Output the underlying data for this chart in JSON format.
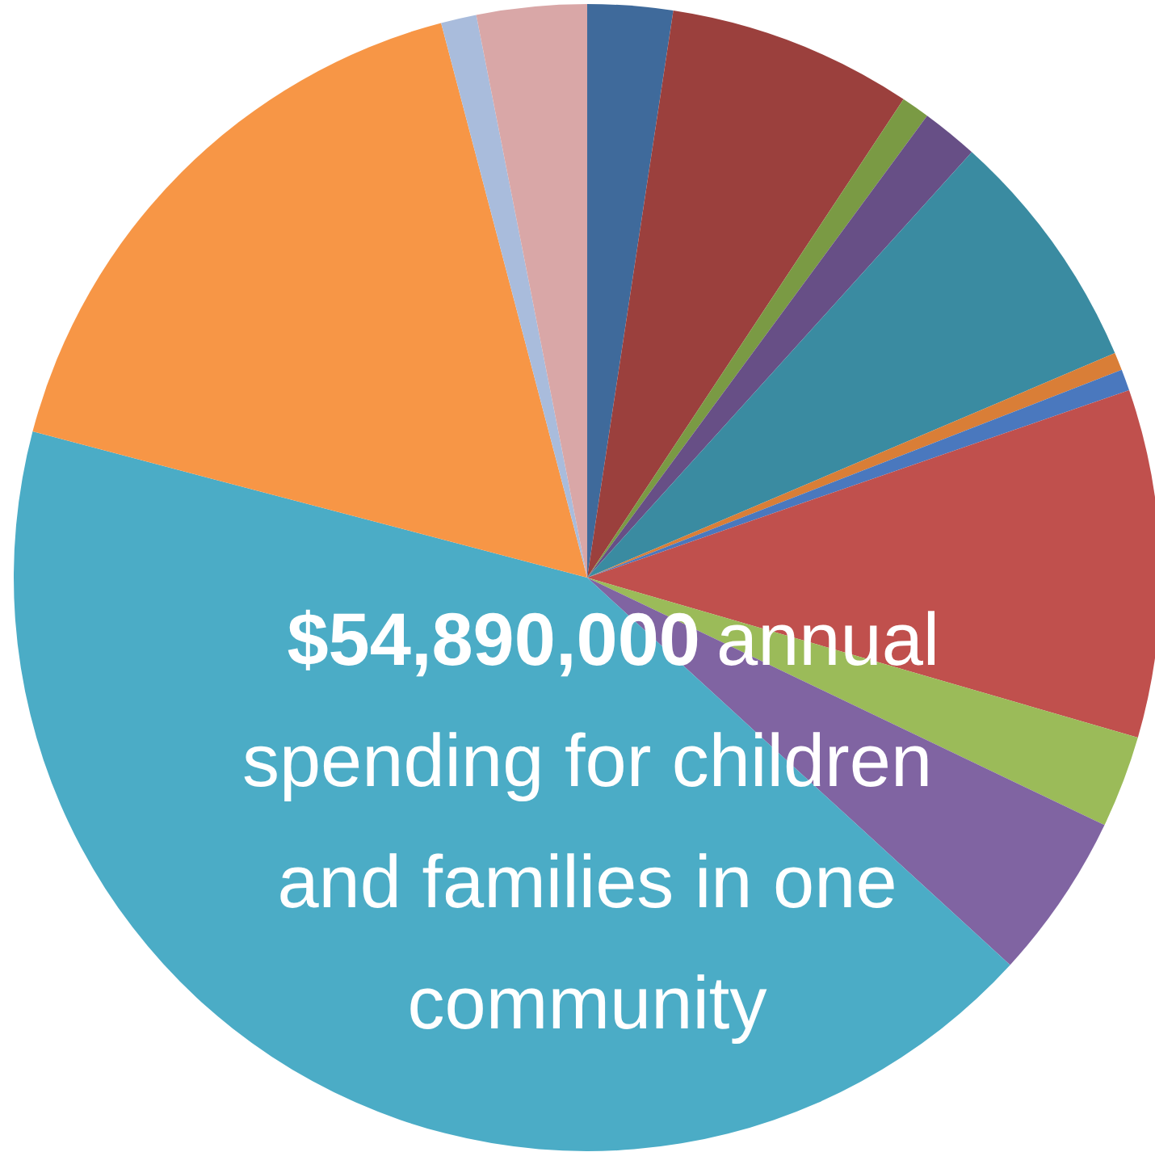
{
  "chart_data": {
    "type": "pie",
    "categories": [
      null,
      null,
      null,
      null,
      null,
      null,
      null,
      null,
      null,
      null,
      null,
      null,
      null,
      null
    ],
    "values": [
      2.4,
      6.9,
      0.8,
      1.6,
      6.9,
      0.5,
      0.6,
      9.8,
      2.6,
      4.7,
      42.3,
      16.8,
      1.0,
      3.1
    ],
    "colors": [
      "#3f6a9b",
      "#9b403d",
      "#7a9a44",
      "#674f86",
      "#3a8ba1",
      "#d97e37",
      "#4a78be",
      "#c0504d",
      "#9bbb59",
      "#8064a2",
      "#4bacc6",
      "#f79646",
      "#a9bcdc",
      "#d9a7a7"
    ],
    "annotations": [
      "$54,890,000 annual spending for children and families in one community"
    ]
  }
}
